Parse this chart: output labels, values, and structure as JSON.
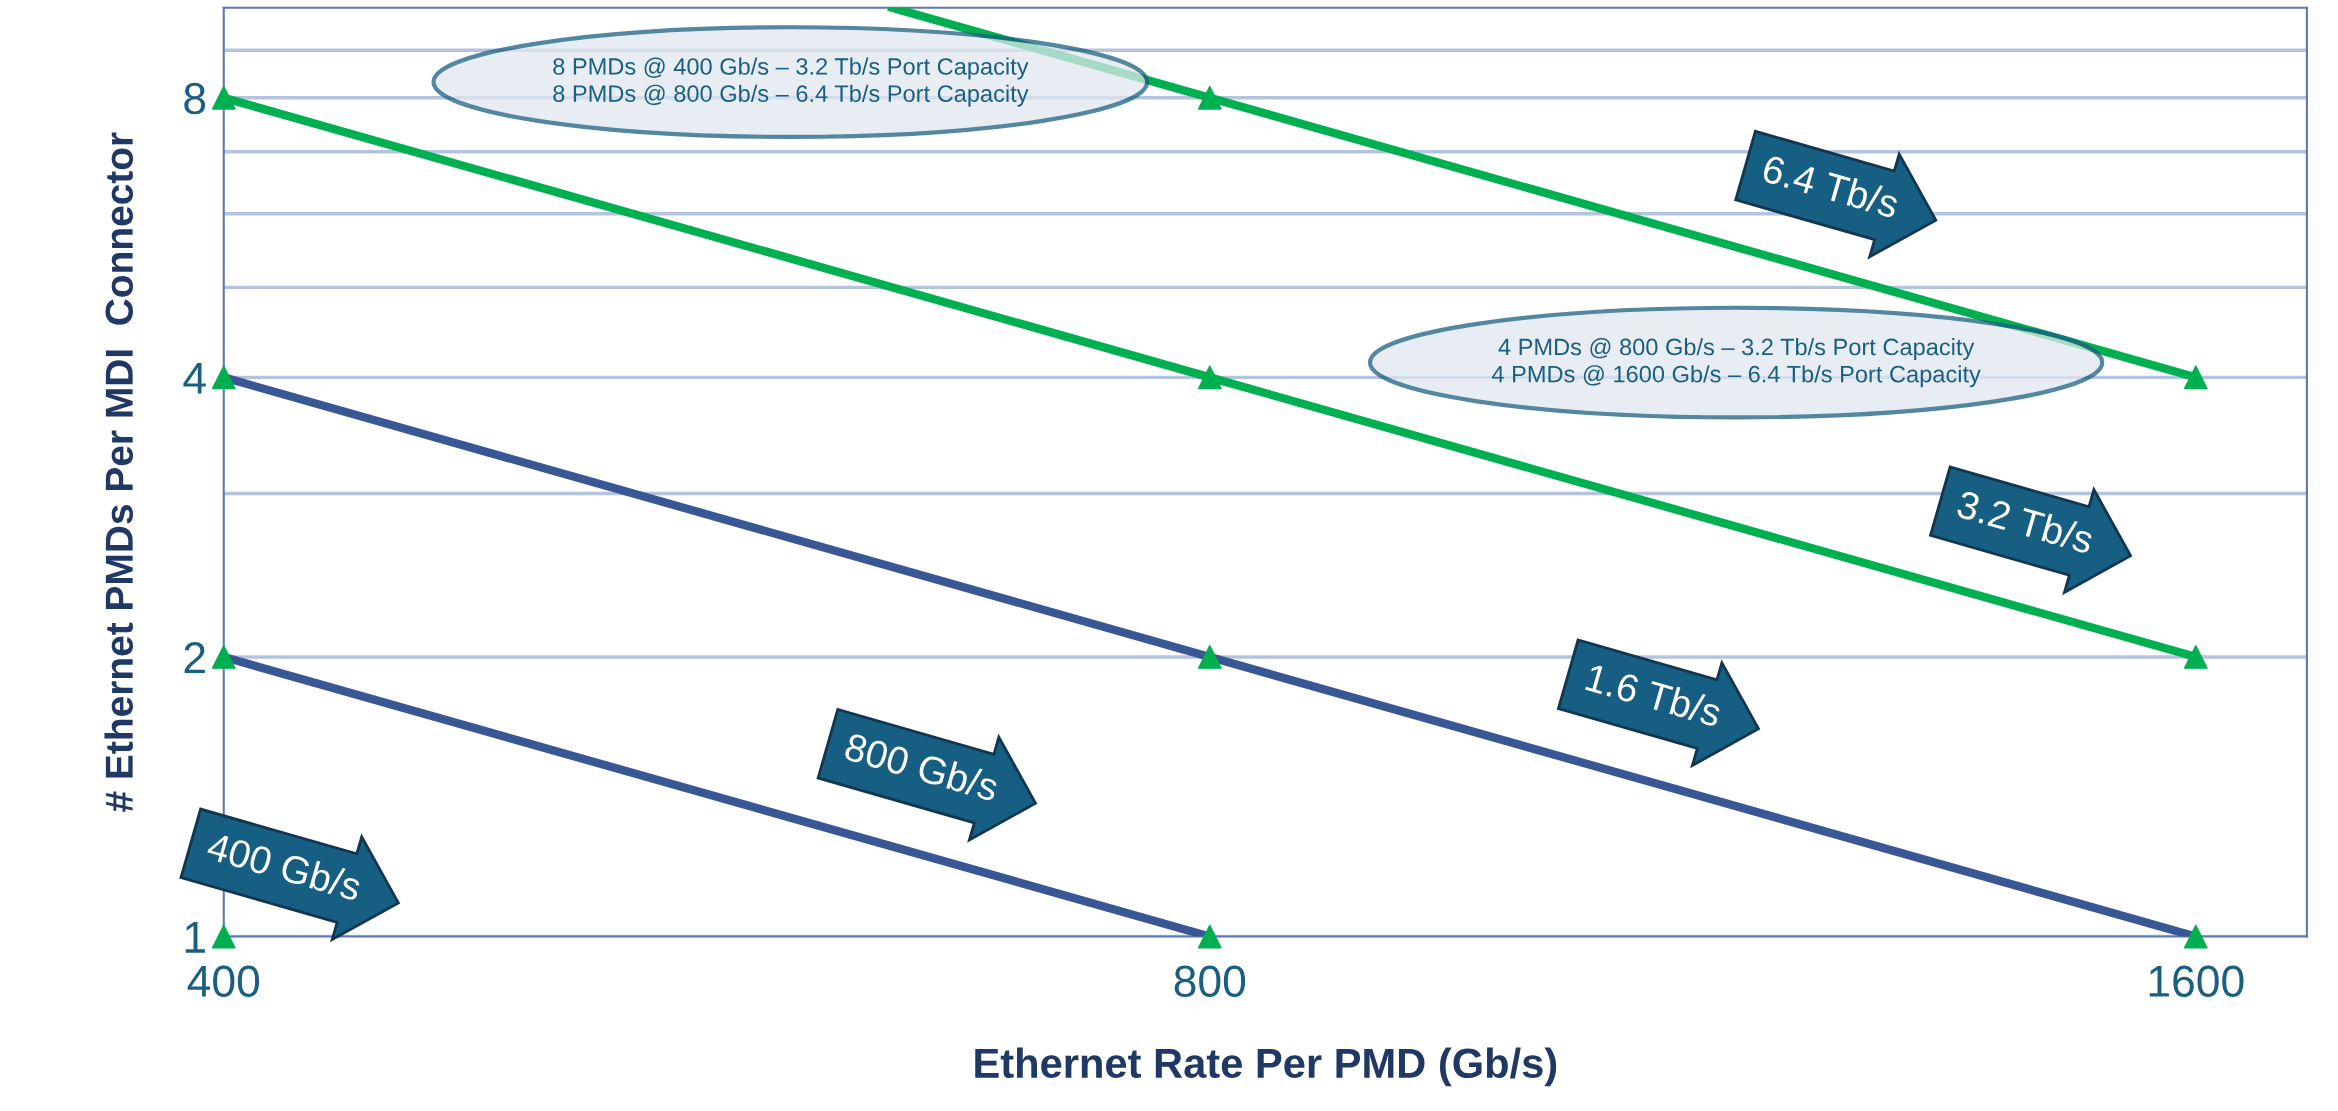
{
  "chart_data": {
    "type": "line",
    "xlabel": "Ethernet Rate Per PMD (Gb/s)",
    "ylabel": "# Ethernet PMDs Per MDI  Connector",
    "log": "xy",
    "xlim": [
      400,
      1730
    ],
    "ylim": [
      1,
      10
    ],
    "xticks": [
      400,
      800,
      1600
    ],
    "yticks": [
      1,
      2,
      {
        "value": 3,
        "label": null
      },
      4,
      {
        "value": 5,
        "label": null
      },
      {
        "value": 6,
        "label": null
      },
      {
        "value": 7,
        "label": null
      },
      8,
      {
        "value": 9,
        "label": null
      }
    ],
    "grid": "y",
    "line_style": "solid",
    "series": [
      {
        "color": "#3a5795",
        "x": [
          400,
          800
        ],
        "values": [
          2,
          1
        ],
        "marker": "none"
      },
      {
        "color": "#3a5795",
        "x": [
          400,
          800,
          1600
        ],
        "values": [
          4,
          2,
          1
        ],
        "marker": "none"
      },
      {
        "color": "#00b050",
        "x": [
          400,
          800,
          1600
        ],
        "values": [
          8,
          4,
          2
        ],
        "marker": "none"
      },
      {
        "color": "#00b050",
        "x": [
          640,
          800,
          1600
        ],
        "values": [
          10,
          8,
          4
        ],
        "marker": "none"
      },
      {
        "type": "scatter",
        "color": "#00b050",
        "x": [
          400,
          400,
          400,
          400,
          800,
          800,
          800,
          800,
          1600,
          1600,
          1600
        ],
        "values": [
          1,
          2,
          4,
          8,
          1,
          2,
          4,
          8,
          1,
          2,
          4
        ],
        "marker": "triangle"
      }
    ],
    "annotations": [
      "8 PMDs @ 400 Gb/s – 3.2 Tb/s Port Capacity\n8 PMDs @ 800 Gb/s – 6.4 Tb/s Port Capacity",
      "4 PMDs @ 800 Gb/s – 3.2 Tb/s Port Capacity\n4 PMDs @ 1600 Gb/s – 6.4 Tb/s Port Capacity",
      {
        "text": "400 Gb/s",
        "x": 400,
        "y": 1
      },
      {
        "text": "800 Gb/s",
        "x": 626,
        "y": 1.28
      },
      {
        "text": "1.6 Tb/s",
        "x": 1047,
        "y": 1.53
      },
      {
        "text": "3.2 Tb/s",
        "x": 1360,
        "y": 2.35
      },
      {
        "text": "6.4 Tb/s",
        "x": 1186,
        "y": 5.4
      }
    ]
  }
}
